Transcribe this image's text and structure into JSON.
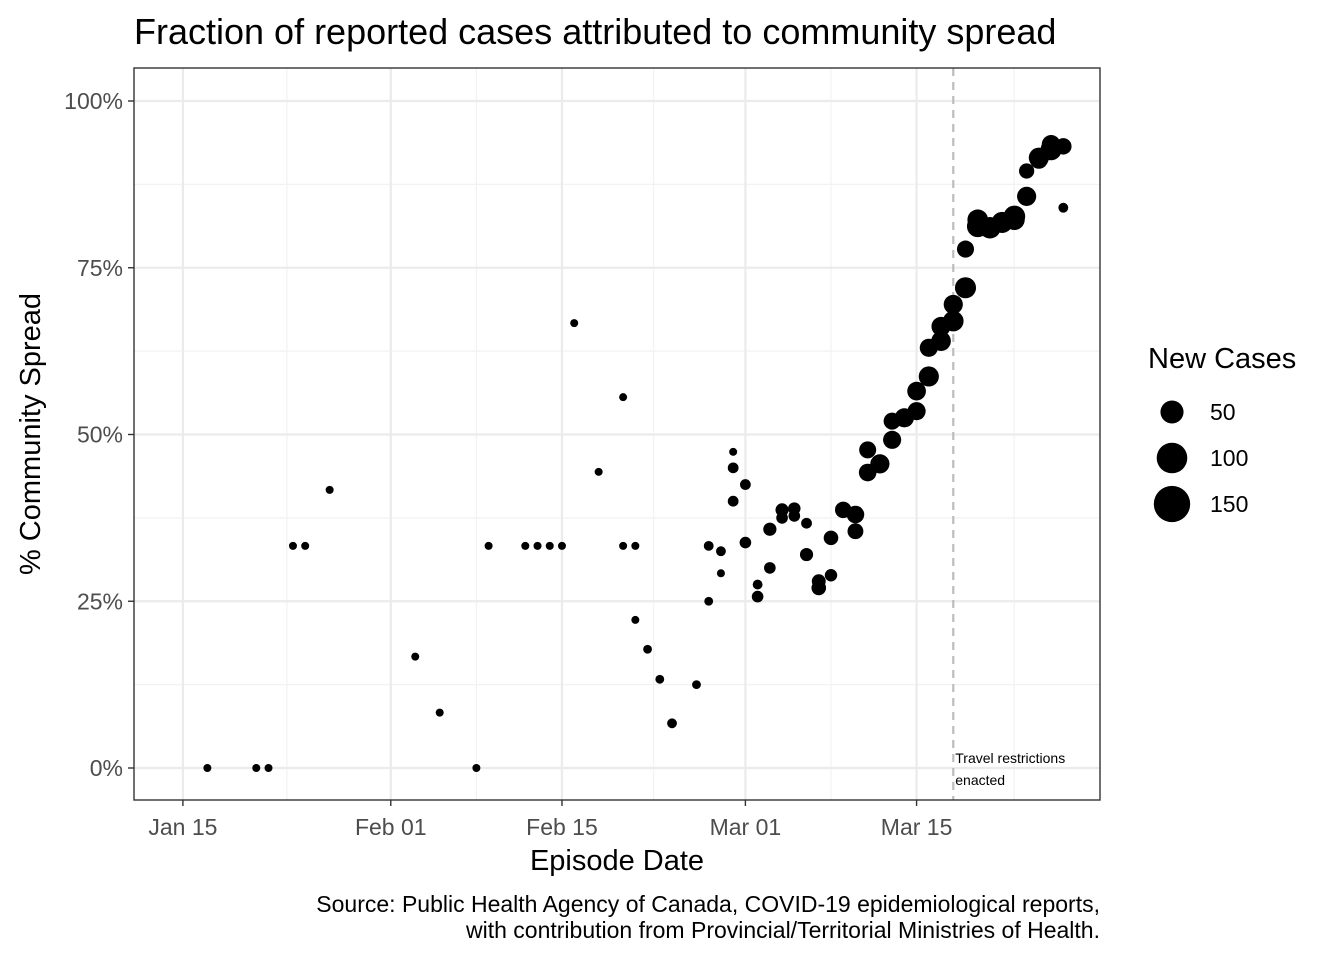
{
  "chart_data": {
    "type": "scatter",
    "title": "Fraction of reported cases attributed to community spread",
    "xlabel": "Episode Date",
    "ylabel": "% Community Spread",
    "caption_lines": [
      "Source: Public Health Agency of Canada, COVID-19 epidemiological reports,",
      "with contribution from Provincial/Territorial Ministries of Health."
    ],
    "x_ticks": [
      "Jan 15",
      "Feb 01",
      "Feb 15",
      "Mar 01",
      "Mar 15"
    ],
    "y_ticks": [
      "0%",
      "25%",
      "50%",
      "75%",
      "100%"
    ],
    "ylim": [
      0,
      1
    ],
    "xlim": [
      "2020-01-11",
      "2020-03-30"
    ],
    "grid": true,
    "size_legend": {
      "title": "New Cases",
      "entries": [
        50,
        100,
        150
      ]
    },
    "vline": {
      "x": "2020-03-18",
      "style": "dashed",
      "color": "#bdbdbd",
      "label_lines": [
        "Travel restrictions",
        "enacted"
      ]
    },
    "point_color": "#000000",
    "points": [
      {
        "x": "2020-01-17",
        "y": 0.0,
        "size": 2
      },
      {
        "x": "2020-01-21",
        "y": 0.0,
        "size": 2
      },
      {
        "x": "2020-01-22",
        "y": 0.0,
        "size": 3
      },
      {
        "x": "2020-01-24",
        "y": 0.333,
        "size": 3
      },
      {
        "x": "2020-01-25",
        "y": 0.333,
        "size": 2
      },
      {
        "x": "2020-01-27",
        "y": 0.417,
        "size": 2
      },
      {
        "x": "2020-02-03",
        "y": 0.167,
        "size": 3
      },
      {
        "x": "2020-02-05",
        "y": 0.083,
        "size": 2
      },
      {
        "x": "2020-02-08",
        "y": 0.0,
        "size": 2
      },
      {
        "x": "2020-02-09",
        "y": 0.333,
        "size": 2
      },
      {
        "x": "2020-02-12",
        "y": 0.333,
        "size": 2
      },
      {
        "x": "2020-02-13",
        "y": 0.333,
        "size": 2
      },
      {
        "x": "2020-02-14",
        "y": 0.333,
        "size": 3
      },
      {
        "x": "2020-02-15",
        "y": 0.333,
        "size": 2
      },
      {
        "x": "2020-02-16",
        "y": 0.667,
        "size": 3
      },
      {
        "x": "2020-02-18",
        "y": 0.444,
        "size": 2
      },
      {
        "x": "2020-02-20",
        "y": 0.556,
        "size": 2
      },
      {
        "x": "2020-02-20",
        "y": 0.333,
        "size": 3
      },
      {
        "x": "2020-02-21",
        "y": 0.333,
        "size": 2
      },
      {
        "x": "2020-02-21",
        "y": 0.222,
        "size": 3
      },
      {
        "x": "2020-02-22",
        "y": 0.178,
        "size": 4
      },
      {
        "x": "2020-02-23",
        "y": 0.133,
        "size": 4
      },
      {
        "x": "2020-02-24",
        "y": 0.067,
        "size": 5
      },
      {
        "x": "2020-02-26",
        "y": 0.125,
        "size": 4
      },
      {
        "x": "2020-02-27",
        "y": 0.333,
        "size": 5
      },
      {
        "x": "2020-02-27",
        "y": 0.25,
        "size": 4
      },
      {
        "x": "2020-02-28",
        "y": 0.325,
        "size": 5
      },
      {
        "x": "2020-02-28",
        "y": 0.292,
        "size": 3
      },
      {
        "x": "2020-02-29",
        "y": 0.474,
        "size": 2
      },
      {
        "x": "2020-02-29",
        "y": 0.45,
        "size": 6
      },
      {
        "x": "2020-02-29",
        "y": 0.4,
        "size": 6
      },
      {
        "x": "2020-03-01",
        "y": 0.425,
        "size": 6
      },
      {
        "x": "2020-03-01",
        "y": 0.338,
        "size": 7
      },
      {
        "x": "2020-03-02",
        "y": 0.275,
        "size": 5
      },
      {
        "x": "2020-03-02",
        "y": 0.257,
        "size": 7
      },
      {
        "x": "2020-03-03",
        "y": 0.358,
        "size": 9
      },
      {
        "x": "2020-03-03",
        "y": 0.3,
        "size": 7
      },
      {
        "x": "2020-03-04",
        "y": 0.387,
        "size": 9
      },
      {
        "x": "2020-03-04",
        "y": 0.375,
        "size": 7
      },
      {
        "x": "2020-03-05",
        "y": 0.389,
        "size": 8
      },
      {
        "x": "2020-03-05",
        "y": 0.378,
        "size": 7
      },
      {
        "x": "2020-03-06",
        "y": 0.367,
        "size": 6
      },
      {
        "x": "2020-03-06",
        "y": 0.32,
        "size": 9
      },
      {
        "x": "2020-03-07",
        "y": 0.28,
        "size": 10
      },
      {
        "x": "2020-03-07",
        "y": 0.27,
        "size": 11
      },
      {
        "x": "2020-03-08",
        "y": 0.289,
        "size": 8
      },
      {
        "x": "2020-03-08",
        "y": 0.345,
        "size": 11
      },
      {
        "x": "2020-03-09",
        "y": 0.387,
        "size": 14
      },
      {
        "x": "2020-03-10",
        "y": 0.38,
        "size": 16
      },
      {
        "x": "2020-03-10",
        "y": 0.355,
        "size": 13
      },
      {
        "x": "2020-03-11",
        "y": 0.477,
        "size": 15
      },
      {
        "x": "2020-03-11",
        "y": 0.443,
        "size": 16
      },
      {
        "x": "2020-03-12",
        "y": 0.456,
        "size": 19
      },
      {
        "x": "2020-03-13",
        "y": 0.492,
        "size": 17
      },
      {
        "x": "2020-03-13",
        "y": 0.52,
        "size": 15
      },
      {
        "x": "2020-03-14",
        "y": 0.525,
        "size": 19
      },
      {
        "x": "2020-03-15",
        "y": 0.565,
        "size": 18
      },
      {
        "x": "2020-03-15",
        "y": 0.535,
        "size": 17
      },
      {
        "x": "2020-03-16",
        "y": 0.587,
        "size": 21
      },
      {
        "x": "2020-03-16",
        "y": 0.63,
        "size": 17
      },
      {
        "x": "2020-03-17",
        "y": 0.64,
        "size": 20
      },
      {
        "x": "2020-03-17",
        "y": 0.662,
        "size": 19
      },
      {
        "x": "2020-03-18",
        "y": 0.695,
        "size": 19
      },
      {
        "x": "2020-03-18",
        "y": 0.67,
        "size": 22
      },
      {
        "x": "2020-03-19",
        "y": 0.72,
        "size": 23
      },
      {
        "x": "2020-03-19",
        "y": 0.778,
        "size": 15
      },
      {
        "x": "2020-03-20",
        "y": 0.812,
        "size": 24
      },
      {
        "x": "2020-03-20",
        "y": 0.822,
        "size": 22
      },
      {
        "x": "2020-03-21",
        "y": 0.81,
        "size": 24
      },
      {
        "x": "2020-03-22",
        "y": 0.818,
        "size": 23
      },
      {
        "x": "2020-03-23",
        "y": 0.822,
        "size": 22
      },
      {
        "x": "2020-03-23",
        "y": 0.827,
        "size": 24
      },
      {
        "x": "2020-03-24",
        "y": 0.857,
        "size": 19
      },
      {
        "x": "2020-03-24",
        "y": 0.895,
        "size": 12
      },
      {
        "x": "2020-03-25",
        "y": 0.912,
        "size": 17
      },
      {
        "x": "2020-03-25",
        "y": 0.915,
        "size": 21
      },
      {
        "x": "2020-03-26",
        "y": 0.927,
        "size": 23
      },
      {
        "x": "2020-03-26",
        "y": 0.935,
        "size": 18
      },
      {
        "x": "2020-03-27",
        "y": 0.932,
        "size": 14
      },
      {
        "x": "2020-03-27",
        "y": 0.84,
        "size": 5
      }
    ]
  }
}
